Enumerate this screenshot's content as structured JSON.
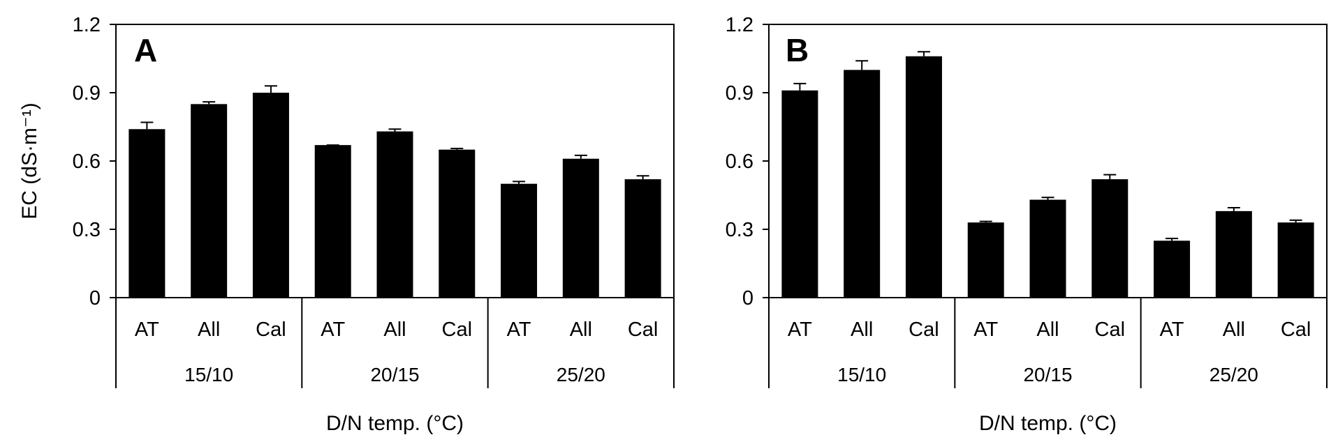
{
  "colors": {
    "bar": "#000000",
    "axis": "#000000",
    "background": "#ffffff"
  },
  "chart_data": [
    {
      "panel_label": "A",
      "type": "bar",
      "ylabel": "EC (dS·m⁻¹)",
      "xlabel": "D/N temp. (°C)",
      "ylim": [
        0,
        1.2
      ],
      "yticks": [
        "0",
        "0.3",
        "0.6",
        "0.9",
        "1.2"
      ],
      "groups": [
        {
          "name": "15/10",
          "categories": [
            "AT",
            "All",
            "Cal"
          ],
          "values": [
            0.74,
            0.85,
            0.9
          ],
          "errors": [
            0.03,
            0.01,
            0.03
          ]
        },
        {
          "name": "20/15",
          "categories": [
            "AT",
            "All",
            "Cal"
          ],
          "values": [
            0.67,
            0.73,
            0.65
          ],
          "errors": [
            0.0,
            0.01,
            0.005
          ]
        },
        {
          "name": "25/20",
          "categories": [
            "AT",
            "All",
            "Cal"
          ],
          "values": [
            0.5,
            0.61,
            0.52
          ],
          "errors": [
            0.01,
            0.015,
            0.015
          ]
        }
      ],
      "grid": false
    },
    {
      "panel_label": "B",
      "type": "bar",
      "ylabel": "",
      "xlabel": "D/N temp. (°C)",
      "ylim": [
        0,
        1.2
      ],
      "yticks": [
        "0",
        "0.3",
        "0.6",
        "0.9",
        "1.2"
      ],
      "groups": [
        {
          "name": "15/10",
          "categories": [
            "AT",
            "All",
            "Cal"
          ],
          "values": [
            0.91,
            1.0,
            1.06
          ],
          "errors": [
            0.03,
            0.04,
            0.02
          ]
        },
        {
          "name": "20/15",
          "categories": [
            "AT",
            "All",
            "Cal"
          ],
          "values": [
            0.33,
            0.43,
            0.52
          ],
          "errors": [
            0.005,
            0.01,
            0.02
          ]
        },
        {
          "name": "25/20",
          "categories": [
            "AT",
            "All",
            "Cal"
          ],
          "values": [
            0.25,
            0.38,
            0.33
          ],
          "errors": [
            0.01,
            0.015,
            0.01
          ]
        }
      ],
      "grid": false
    }
  ]
}
